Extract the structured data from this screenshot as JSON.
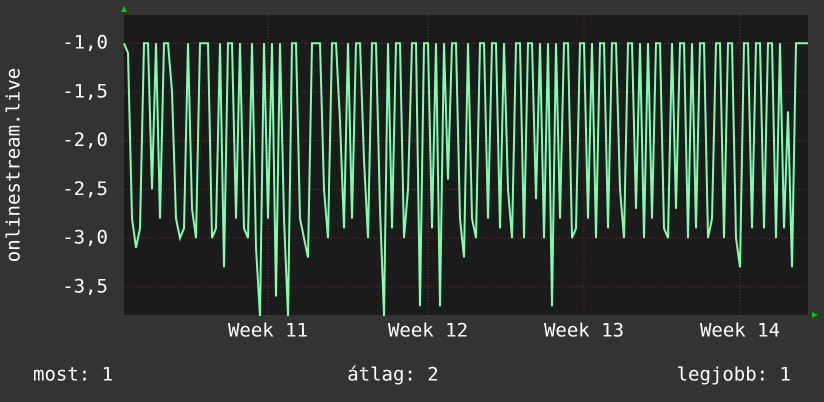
{
  "chart_data": {
    "type": "line",
    "y_label": "onlinestream.live",
    "categories": [
      null,
      null,
      null,
      null,
      null,
      null,
      null,
      null,
      null,
      null,
      null,
      null,
      null,
      null,
      null,
      null,
      null,
      null,
      null,
      null,
      null,
      null,
      null,
      null,
      null,
      null,
      null,
      null,
      null,
      null,
      null,
      null,
      null,
      null,
      null,
      null,
      "Week 11",
      null,
      null,
      null,
      null,
      null,
      null,
      null,
      null,
      null,
      null,
      null,
      null,
      null,
      null,
      null,
      null,
      null,
      null,
      null,
      null,
      null,
      null,
      null,
      null,
      null,
      null,
      null,
      null,
      null,
      null,
      null,
      null,
      null,
      null,
      null,
      null,
      null,
      null,
      null,
      "Week 12",
      null,
      null,
      null,
      null,
      null,
      null,
      null,
      null,
      null,
      null,
      null,
      null,
      null,
      null,
      null,
      null,
      null,
      null,
      null,
      null,
      null,
      null,
      null,
      null,
      null,
      null,
      null,
      null,
      null,
      null,
      null,
      null,
      null,
      null,
      null,
      null,
      null,
      null,
      "Week 13",
      null,
      null,
      null,
      null,
      null,
      null,
      null,
      null,
      null,
      null,
      null,
      null,
      null,
      null,
      null,
      null,
      null,
      null,
      null,
      null,
      null,
      null,
      null,
      null,
      null,
      null,
      null,
      null,
      null,
      null,
      null,
      null,
      null,
      null,
      null,
      null,
      null,
      null,
      "Week 14",
      null,
      null,
      null,
      null,
      null,
      null,
      null,
      null,
      null,
      null,
      null,
      null,
      null,
      null,
      null,
      null,
      null
    ],
    "series": [
      {
        "color": "#7fffb0",
        "values": [
          -1.0,
          -1.1,
          -2.8,
          -3.1,
          -2.9,
          -1.0,
          -1.0,
          -2.5,
          -1.0,
          -2.8,
          -1.0,
          -1.0,
          -1.5,
          -2.8,
          -3.0,
          -2.9,
          -1.0,
          -2.7,
          -3.0,
          -1.0,
          -1.0,
          -1.0,
          -3.0,
          -2.9,
          -1.0,
          -3.3,
          -1.0,
          -1.0,
          -2.8,
          -1.0,
          -2.9,
          -3.0,
          -1.0,
          -3.1,
          -3.8,
          -1.0,
          -2.8,
          -1.0,
          -3.6,
          -1.0,
          -2.8,
          -3.8,
          -1.0,
          -1.0,
          -2.8,
          -3.0,
          -3.2,
          -1.0,
          -1.0,
          -1.0,
          -2.5,
          -3.0,
          -1.0,
          -1.0,
          -1.8,
          -2.9,
          -1.0,
          -2.8,
          -1.0,
          -1.0,
          -2.2,
          -3.0,
          -1.0,
          -1.0,
          -2.7,
          -3.8,
          -1.0,
          -2.9,
          -1.0,
          -1.0,
          -3.0,
          -2.5,
          -1.0,
          -1.0,
          -3.7,
          -1.0,
          -1.0,
          -2.9,
          -1.0,
          -3.7,
          -1.0,
          -2.4,
          -1.0,
          -1.0,
          -2.8,
          -3.2,
          -1.0,
          -2.8,
          -3.0,
          -1.0,
          -1.0,
          -2.8,
          -1.0,
          -1.0,
          -2.9,
          -1.0,
          -2.5,
          -3.0,
          -1.0,
          -1.0,
          -3.0,
          -1.0,
          -1.0,
          -2.6,
          -1.0,
          -3.0,
          -1.0,
          -3.7,
          -1.0,
          -2.8,
          -1.0,
          -1.0,
          -3.0,
          -2.9,
          -1.0,
          -1.0,
          -2.8,
          -1.0,
          -3.0,
          -1.0,
          -1.0,
          -2.9,
          -1.0,
          -1.0,
          -2.5,
          -3.0,
          -1.0,
          -1.0,
          -2.7,
          -1.0,
          -3.0,
          -1.0,
          -2.8,
          -1.0,
          -1.0,
          -2.9,
          -3.0,
          -1.0,
          -2.7,
          -1.0,
          -1.0,
          -3.0,
          -1.0,
          -2.9,
          -1.0,
          -1.0,
          -3.0,
          -2.8,
          -1.0,
          -1.0,
          -3.0,
          -1.0,
          -1.0,
          -3.0,
          -3.3,
          -1.0,
          -1.0,
          -2.9,
          -1.0,
          -1.0,
          -2.9,
          -1.0,
          -1.0,
          -3.0,
          -1.0,
          -2.9,
          -1.7,
          -3.3,
          -1.0,
          -1.0,
          -1.0,
          -1.0
        ]
      }
    ],
    "ylim": [
      -3.79,
      -0.71
    ],
    "yticks": [
      {
        "value": -1.0,
        "label": "-1,0"
      },
      {
        "value": -1.5,
        "label": "-1,5"
      },
      {
        "value": -2.0,
        "label": "-2,0"
      },
      {
        "value": -2.5,
        "label": "-2,5"
      },
      {
        "value": -3.0,
        "label": "-3,0"
      },
      {
        "value": -3.5,
        "label": "-3,5"
      }
    ],
    "grid": true,
    "footer": [
      "most: 1",
      "átlag: 2",
      "legjobb: 1"
    ]
  }
}
